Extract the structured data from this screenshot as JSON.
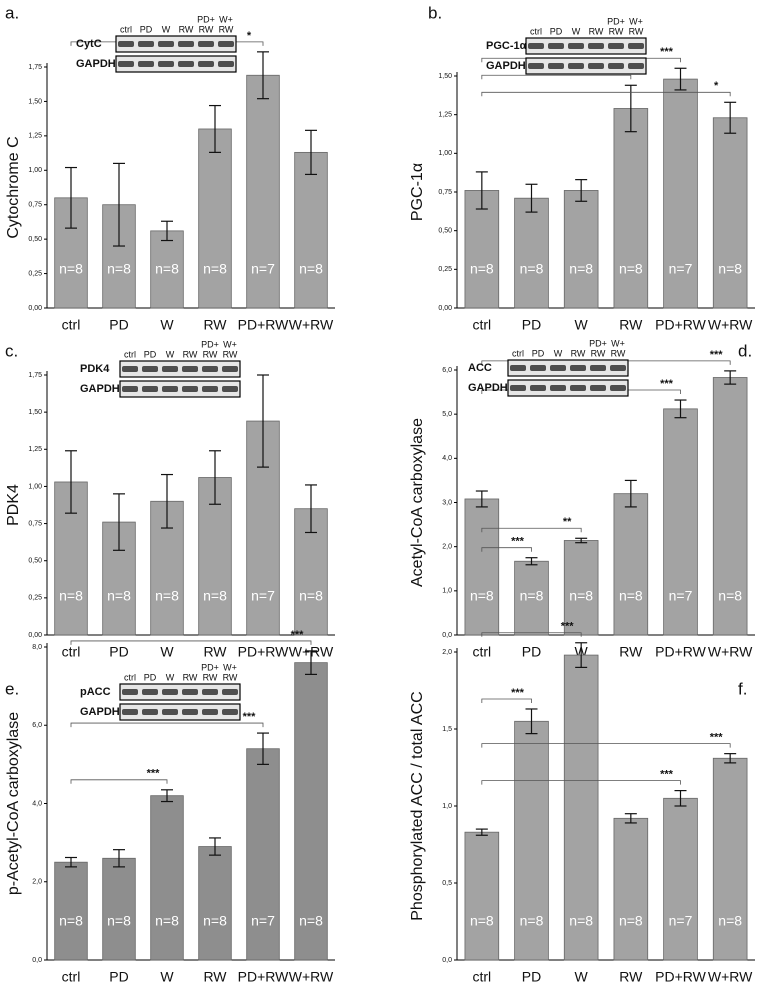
{
  "chart_data": [
    {
      "type": "bar",
      "panel": "a.",
      "ylabel": "Cytochrome C",
      "blot": {
        "protein": "CytC",
        "reference": "GAPDH",
        "lanes": [
          "ctrl",
          "PD",
          "W",
          "RW",
          [
            "PD+",
            "RW"
          ],
          [
            "W+",
            "RW"
          ]
        ]
      },
      "categories": [
        "ctrl",
        "PD",
        "W",
        "RW",
        "PD+RW",
        "W+RW"
      ],
      "values": [
        0.8,
        0.75,
        0.56,
        1.3,
        1.69,
        1.13
      ],
      "errors": [
        0.22,
        0.3,
        0.07,
        0.17,
        0.17,
        0.16
      ],
      "value_labels": [
        "n=8",
        "n=8",
        "n=8",
        "n=8",
        "n=7",
        "n=8"
      ],
      "color": "#a3a3a3",
      "ylim": [
        0,
        1.75
      ],
      "yticks": [
        {
          "value": 0,
          "label": "0,00"
        },
        {
          "value": 0.25,
          "label": "0,25"
        },
        {
          "value": 0.5,
          "label": "0,50"
        },
        {
          "value": 0.75,
          "label": "0,75"
        },
        {
          "value": 1,
          "label": "1,00"
        },
        {
          "value": 1.25,
          "label": "1,25"
        },
        {
          "value": 1.5,
          "label": "1,50"
        },
        {
          "value": 1.75,
          "label": "1,75"
        }
      ],
      "significance": [
        {
          "from": 0,
          "to": 4,
          "label": "*"
        }
      ]
    },
    {
      "type": "bar",
      "panel": "b.",
      "ylabel": "PGC-1α",
      "blot": {
        "protein": "PGC-1α",
        "reference": "GAPDH",
        "lanes": [
          "ctrl",
          "PD",
          "W",
          "RW",
          [
            "PD+",
            "RW"
          ],
          [
            "W+",
            "RW"
          ]
        ]
      },
      "categories": [
        "ctrl",
        "PD",
        "W",
        "RW",
        "PD+RW",
        "W+RW"
      ],
      "values": [
        0.76,
        0.71,
        0.76,
        1.29,
        1.48,
        1.23
      ],
      "errors": [
        0.12,
        0.09,
        0.07,
        0.15,
        0.07,
        0.1
      ],
      "value_labels": [
        "n=8",
        "n=8",
        "n=8",
        "n=8",
        "n=7",
        "n=8"
      ],
      "color": "#a3a3a3",
      "ylim": [
        0,
        1.5
      ],
      "yticks": [
        {
          "value": 0,
          "label": "0,00"
        },
        {
          "value": 0.25,
          "label": "0,25"
        },
        {
          "value": 0.5,
          "label": "0,50"
        },
        {
          "value": 0.75,
          "label": "0,75"
        },
        {
          "value": 1,
          "label": "1,00"
        },
        {
          "value": 1.25,
          "label": "1,25"
        },
        {
          "value": 1.5,
          "label": "1,50"
        }
      ],
      "significance": [
        {
          "from": 0,
          "to": 4,
          "label": "***"
        },
        {
          "from": 0,
          "to": 3,
          "label": "**"
        },
        {
          "from": 0,
          "to": 5,
          "label": "*"
        }
      ]
    },
    {
      "type": "bar",
      "panel": "c.",
      "ylabel": "PDK4",
      "blot": {
        "protein": "PDK4",
        "reference": "GAPDH",
        "lanes": [
          "ctrl",
          "PD",
          "W",
          "RW",
          [
            "PD+",
            "RW"
          ],
          [
            "W+",
            "RW"
          ]
        ]
      },
      "categories": [
        "ctrl",
        "PD",
        "W",
        "RW",
        "PD+RW",
        "W+RW"
      ],
      "values": [
        1.03,
        0.76,
        0.9,
        1.06,
        1.44,
        0.85
      ],
      "errors": [
        0.21,
        0.19,
        0.18,
        0.18,
        0.31,
        0.16
      ],
      "value_labels": [
        "n=8",
        "n=8",
        "n=8",
        "n=8",
        "n=7",
        "n=8"
      ],
      "color": "#a3a3a3",
      "ylim": [
        0,
        1.75
      ],
      "yticks": [
        {
          "value": 0,
          "label": "0,00"
        },
        {
          "value": 0.25,
          "label": "0,25"
        },
        {
          "value": 0.5,
          "label": "0,50"
        },
        {
          "value": 0.75,
          "label": "0,75"
        },
        {
          "value": 1,
          "label": "1,00"
        },
        {
          "value": 1.25,
          "label": "1,25"
        },
        {
          "value": 1.5,
          "label": "1,50"
        },
        {
          "value": 1.75,
          "label": "1,75"
        }
      ],
      "significance": []
    },
    {
      "type": "bar",
      "panel": "d.",
      "ylabel": "Acetyl-CoA carboxylase",
      "blot": {
        "protein": "ACC",
        "reference": "GAPDH",
        "lanes": [
          "ctrl",
          "PD",
          "W",
          "RW",
          [
            "PD+",
            "RW"
          ],
          [
            "W+",
            "RW"
          ]
        ]
      },
      "categories": [
        "ctrl",
        "PD",
        "W",
        "RW",
        "PD+RW",
        "W+RW"
      ],
      "values": [
        3.08,
        1.67,
        2.14,
        3.2,
        5.12,
        5.83
      ],
      "errors": [
        0.18,
        0.08,
        0.05,
        0.3,
        0.2,
        0.15
      ],
      "value_labels": [
        "n=8",
        "n=8",
        "n=8",
        "n=8",
        "n=7",
        "n=8"
      ],
      "color": "#a3a3a3",
      "ylim": [
        0,
        6
      ],
      "yticks": [
        {
          "value": 0,
          "label": "0,0"
        },
        {
          "value": 1,
          "label": "1,0"
        },
        {
          "value": 2,
          "label": "2,0"
        },
        {
          "value": 3,
          "label": "3,0"
        },
        {
          "value": 4,
          "label": "4,0"
        },
        {
          "value": 5,
          "label": "5,0"
        },
        {
          "value": 6,
          "label": "6,0"
        }
      ],
      "significance": [
        {
          "from": 0,
          "to": 1,
          "label": "***"
        },
        {
          "from": 0,
          "to": 2,
          "label": "**"
        },
        {
          "from": 0,
          "to": 4,
          "label": "***"
        },
        {
          "from": 0,
          "to": 5,
          "label": "***"
        }
      ]
    },
    {
      "type": "bar",
      "panel": "e.",
      "ylabel": "p-Acetyl-CoA carboxylase",
      "blot": {
        "protein": "pACC",
        "reference": "GAPDH",
        "lanes": [
          "ctrl",
          "PD",
          "W",
          "RW",
          [
            "PD+",
            "RW"
          ],
          [
            "W+",
            "RW"
          ]
        ]
      },
      "categories": [
        "ctrl",
        "PD",
        "W",
        "RW",
        "PD+RW",
        "W+RW"
      ],
      "values": [
        2.5,
        2.6,
        4.2,
        2.9,
        5.4,
        7.6
      ],
      "errors": [
        0.12,
        0.22,
        0.15,
        0.22,
        0.4,
        0.3
      ],
      "value_labels": [
        "n=8",
        "n=8",
        "n=8",
        "n=8",
        "n=7",
        "n=8"
      ],
      "color": "#8e8e8e",
      "ylim": [
        0,
        8
      ],
      "yticks": [
        {
          "value": 0,
          "label": "0,0"
        },
        {
          "value": 2,
          "label": "2,0"
        },
        {
          "value": 4,
          "label": "4,0"
        },
        {
          "value": 6,
          "label": "6,0"
        },
        {
          "value": 8,
          "label": "8,0"
        }
      ],
      "significance": [
        {
          "from": 0,
          "to": 2,
          "label": "***"
        },
        {
          "from": 0,
          "to": 4,
          "label": "***"
        },
        {
          "from": 0,
          "to": 5,
          "label": "***"
        }
      ]
    },
    {
      "type": "bar",
      "panel": "f.",
      "ylabel": "Phosphorylated ACC / total ACC",
      "categories": [
        "ctrl",
        "PD",
        "W",
        "RW",
        "PD+RW",
        "W+RW"
      ],
      "values": [
        0.83,
        1.55,
        1.98,
        0.92,
        1.05,
        1.31
      ],
      "errors": [
        0.02,
        0.08,
        0.08,
        0.03,
        0.05,
        0.03
      ],
      "value_labels": [
        "n=8",
        "n=8",
        "n=8",
        "n=8",
        "n=7",
        "n=8"
      ],
      "color": "#a3a3a3",
      "ylim": [
        0,
        2
      ],
      "yticks": [
        {
          "value": 0,
          "label": "0,0"
        },
        {
          "value": 0.5,
          "label": "0,5"
        },
        {
          "value": 1,
          "label": "1,0"
        },
        {
          "value": 1.5,
          "label": "1,5"
        },
        {
          "value": 2,
          "label": "2,0"
        }
      ],
      "significance": [
        {
          "from": 0,
          "to": 1,
          "label": "***"
        },
        {
          "from": 0,
          "to": 2,
          "label": "***"
        },
        {
          "from": 0,
          "to": 4,
          "label": "***"
        },
        {
          "from": 0,
          "to": 5,
          "label": "***"
        }
      ]
    }
  ]
}
